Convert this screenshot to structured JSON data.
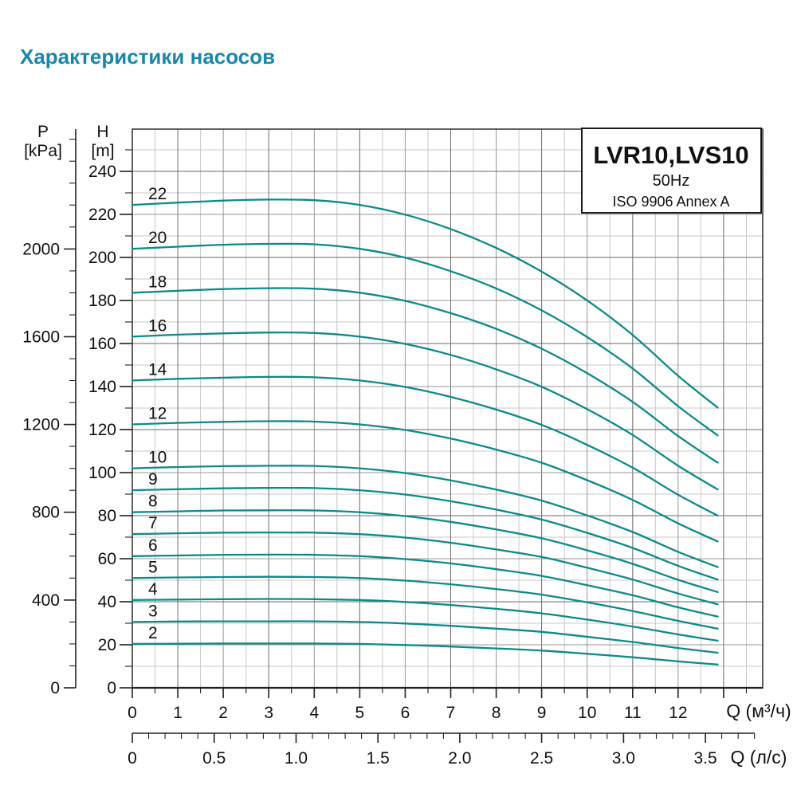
{
  "page": {
    "title": "Характеристики насосов",
    "title_color": "#1987ac"
  },
  "chart_data": {
    "type": "line",
    "title": "Характеристики насосов",
    "info_box": {
      "model": "LVR10,LVS10",
      "frequency": "50Hz",
      "standard": "ISO 9906 Annex A"
    },
    "colors": {
      "curve": "#0d8a8a",
      "grid_major": "#6a6a6a",
      "grid_mid": "#979797",
      "grid_minor": "#c8c8c8",
      "frame": "#3c3c3c",
      "axis": "#222222",
      "text": "#111111"
    },
    "y_axis_primary": {
      "name": "H",
      "unit": "[m]",
      "labeled_ticks": [
        0,
        20,
        40,
        60,
        80,
        100,
        120,
        140,
        160,
        180,
        200,
        220,
        240
      ],
      "minor_step": 10,
      "minor_max": 250,
      "range_max": 259.63,
      "grid": "on"
    },
    "y_axis_secondary": {
      "name": "P",
      "unit": "[kPa]",
      "labeled_ticks": [
        0,
        400,
        800,
        1200,
        1600,
        2000
      ],
      "minor_step": 100,
      "minor_max": 2500,
      "kpa_per_m": 9.80665
    },
    "x_axis_primary": {
      "name": "Q (м³/ч)",
      "labeled_ticks": [
        0,
        1,
        2,
        3,
        4,
        5,
        6,
        7,
        8,
        9,
        10,
        11,
        12
      ],
      "unlabeled_major_ticks": [
        13
      ],
      "minor_step": 0.5,
      "minor_max": 13.5,
      "range_max": 13.86,
      "grid": "on"
    },
    "x_axis_secondary": {
      "name": "Q (л/с)",
      "labeled_ticks": [
        {
          "v": 0,
          "label": "0"
        },
        {
          "v": 0.5,
          "label": "0.5"
        },
        {
          "v": 1,
          "label": "1.0"
        },
        {
          "v": 1.5,
          "label": "1.5"
        },
        {
          "v": 2,
          "label": "2.0"
        },
        {
          "v": 2.5,
          "label": "2.5"
        },
        {
          "v": 3,
          "label": "3.0"
        },
        {
          "v": 3.5,
          "label": "3.5"
        }
      ],
      "minor_step": 0.1,
      "minor_max": 3.8,
      "m3h_per_ls": 3.6
    },
    "q_values": [
      0,
      1,
      2,
      3,
      4,
      5,
      6,
      7,
      8,
      9,
      10,
      11,
      12,
      12.87
    ],
    "series": [
      {
        "stages": "22",
        "heads_m": [
          224.4,
          225.5,
          226.4,
          226.9,
          226.6,
          224.4,
          219.9,
          213.2,
          204.4,
          193.4,
          180.0,
          164.0,
          145.0,
          130.2
        ]
      },
      {
        "stages": "20",
        "heads_m": [
          204.0,
          205.0,
          205.9,
          206.3,
          206.1,
          204.0,
          199.9,
          193.6,
          185.6,
          175.4,
          163.0,
          148.4,
          130.9,
          117.3
        ]
      },
      {
        "stages": "18",
        "heads_m": [
          183.6,
          184.5,
          185.3,
          185.7,
          185.5,
          183.6,
          179.8,
          174.1,
          166.8,
          157.6,
          146.2,
          132.9,
          117.0,
          104.6
        ]
      },
      {
        "stages": "16",
        "heads_m": [
          163.2,
          164.1,
          164.7,
          165.1,
          164.9,
          163.2,
          159.8,
          154.7,
          148.0,
          139.9,
          129.5,
          117.5,
          103.2,
          92.2
        ]
      },
      {
        "stages": "14",
        "heads_m": [
          142.8,
          143.6,
          144.1,
          144.5,
          144.3,
          142.8,
          139.8,
          135.2,
          129.3,
          122.2,
          112.9,
          102.3,
          89.7,
          80.0
        ]
      },
      {
        "stages": "12",
        "heads_m": [
          122.4,
          123.1,
          123.6,
          123.9,
          123.7,
          122.4,
          119.8,
          115.8,
          110.7,
          104.6,
          96.5,
          87.3,
          76.4,
          68.0
        ]
      },
      {
        "stages": "10",
        "heads_m": [
          102.0,
          102.6,
          103.0,
          103.2,
          103.1,
          102.0,
          99.8,
          96.4,
          92.1,
          87.0,
          80.1,
          72.4,
          63.2,
          56.1
        ]
      },
      {
        "stages": "9",
        "heads_m": [
          91.8,
          92.3,
          92.7,
          92.9,
          92.8,
          91.8,
          89.8,
          86.7,
          82.8,
          78.2,
          72.0,
          65.0,
          56.7,
          50.3
        ]
      },
      {
        "stages": "8",
        "heads_m": [
          81.6,
          82.0,
          82.4,
          82.5,
          82.4,
          81.6,
          79.8,
          77.1,
          73.6,
          69.5,
          63.9,
          57.6,
          50.2,
          44.5
        ]
      },
      {
        "stages": "7",
        "heads_m": [
          71.4,
          71.8,
          72.1,
          72.2,
          72.1,
          71.4,
          69.8,
          67.4,
          64.3,
          60.8,
          55.8,
          50.3,
          43.8,
          38.8
        ]
      },
      {
        "stages": "6",
        "heads_m": [
          61.2,
          61.5,
          61.8,
          61.9,
          61.8,
          61.2,
          59.8,
          57.8,
          55.1,
          52.0,
          47.7,
          43.0,
          37.4,
          33.1
        ]
      },
      {
        "stages": "5",
        "heads_m": [
          51.0,
          51.3,
          51.5,
          51.6,
          51.5,
          51.0,
          49.8,
          48.1,
          45.9,
          43.3,
          39.7,
          35.7,
          31.1,
          27.5
        ]
      },
      {
        "stages": "4",
        "heads_m": [
          40.8,
          41.0,
          41.2,
          41.3,
          41.2,
          40.8,
          39.9,
          38.5,
          36.7,
          34.6,
          31.7,
          28.5,
          24.8,
          21.9
        ]
      },
      {
        "stages": "3",
        "heads_m": [
          30.6,
          30.8,
          30.9,
          30.9,
          30.9,
          30.6,
          29.9,
          28.8,
          27.5,
          26.0,
          23.7,
          21.3,
          18.5,
          16.3
        ]
      },
      {
        "stages": "2",
        "heads_m": [
          20.4,
          20.5,
          20.6,
          20.6,
          20.6,
          20.4,
          19.9,
          19.2,
          18.3,
          17.3,
          15.8,
          14.2,
          12.3,
          10.8
        ]
      }
    ],
    "legend_position": "labels-on-curves-left"
  }
}
